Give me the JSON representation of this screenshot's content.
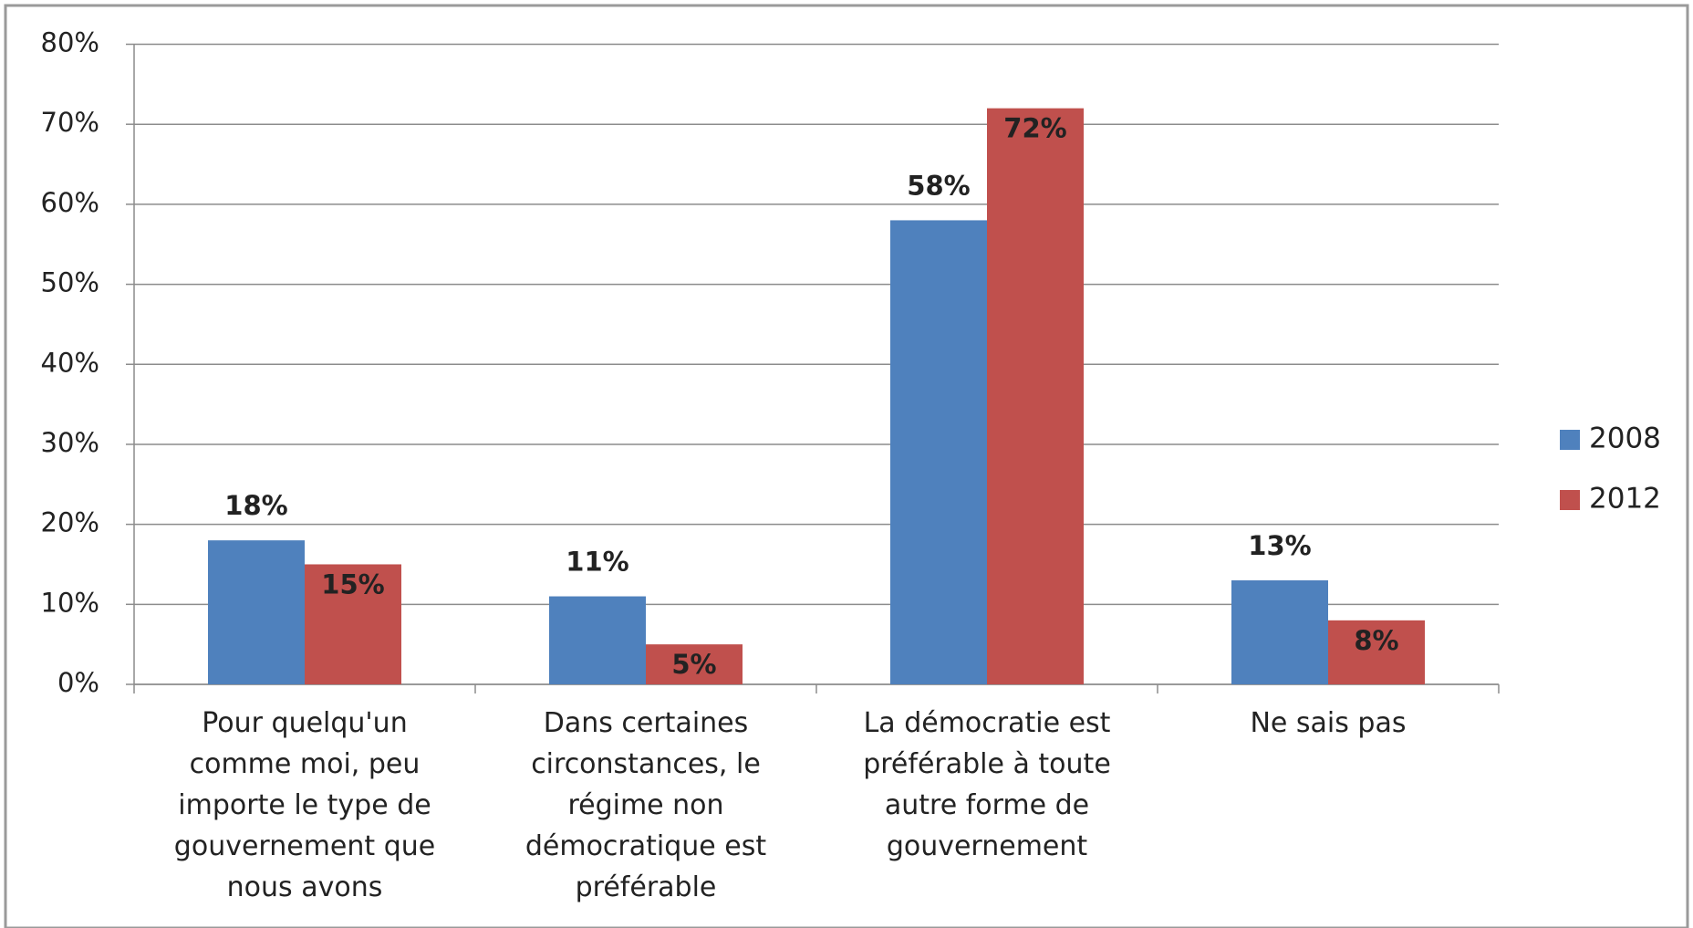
{
  "chart_data": {
    "type": "bar",
    "categories": [
      "Pour quelqu'un comme moi, peu importe le type de gouvernement que nous avons",
      "Dans certaines circonstances, le régime non démocratique est préférable",
      "La démocratie est préférable à toute autre forme de gouvernement",
      "Ne sais pas"
    ],
    "series": [
      {
        "name": "2008",
        "color": "#4f81bd",
        "values": [
          18,
          11,
          58,
          13
        ],
        "value_labels": [
          "18%",
          "11%",
          "58%",
          "13%"
        ]
      },
      {
        "name": "2012",
        "color": "#c0504d",
        "values": [
          15,
          5,
          72,
          8
        ],
        "value_labels": [
          "15%",
          "5%",
          "72%",
          "8%"
        ]
      }
    ],
    "ylim": [
      0,
      80
    ],
    "yticks": [
      {
        "value": 0,
        "label": "0%"
      },
      {
        "value": 10,
        "label": "10%"
      },
      {
        "value": 20,
        "label": "20%"
      },
      {
        "value": 30,
        "label": "30%"
      },
      {
        "value": 40,
        "label": "40%"
      },
      {
        "value": 50,
        "label": "50%"
      },
      {
        "value": 60,
        "label": "60%"
      },
      {
        "value": 70,
        "label": "70%"
      },
      {
        "value": 80,
        "label": "80%"
      }
    ],
    "grid": true,
    "legend": "right"
  }
}
